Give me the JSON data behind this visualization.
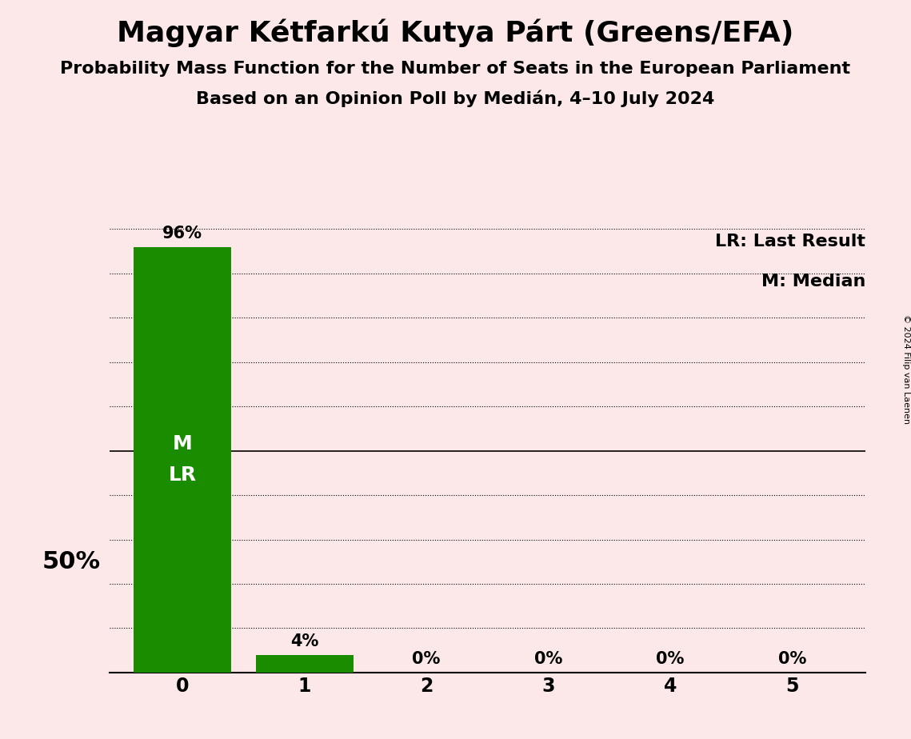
{
  "title": "Magyar Kétfarkú Kutya Párt (Greens/EFA)",
  "subtitle1": "Probability Mass Function for the Number of Seats in the European Parliament",
  "subtitle2": "Based on an Opinion Poll by Medián, 4–10 July 2024",
  "copyright": "© 2024 Filip van Laenen",
  "seats": [
    0,
    1,
    2,
    3,
    4,
    5
  ],
  "probabilities": [
    0.96,
    0.04,
    0.0,
    0.0,
    0.0,
    0.0
  ],
  "bar_color": "#1a8c00",
  "background_color": "#fce8e8",
  "median": 0,
  "last_result": 0,
  "ylim": [
    0,
    1.0
  ],
  "yticks": [
    0.0,
    0.1,
    0.2,
    0.3,
    0.4,
    0.5,
    0.6,
    0.7,
    0.8,
    0.9,
    1.0
  ],
  "ylabel_50": "50%",
  "bar_labels": [
    "96%",
    "4%",
    "0%",
    "0%",
    "0%",
    "0%"
  ],
  "annotations_in_bar": {
    "0": [
      "M",
      "LR"
    ]
  },
  "title_fontsize": 26,
  "subtitle_fontsize": 16,
  "label_fontsize": 15,
  "tick_fontsize": 17,
  "legend_fontsize": 16,
  "annotation_fontsize": 18,
  "fifty_pct_fontsize": 22
}
